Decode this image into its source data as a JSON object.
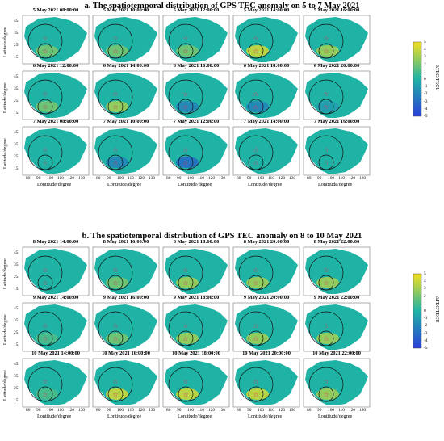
{
  "colors": {
    "background": "#1fb3a6",
    "positive": "#f5e020",
    "negative": "#2a3fd8",
    "marker": "#e0305a",
    "circle": "#111111"
  },
  "colorbar": {
    "label": "ΔTEC/TECU",
    "ticks": [
      "5",
      "4",
      "3",
      "2",
      "1",
      "0",
      "-1",
      "-2",
      "-3",
      "-4",
      "-5"
    ]
  },
  "axes": {
    "ylabel": "Latitude/degree",
    "xlabel": "Lontitude/degree",
    "yticks": [
      "45",
      "35",
      "25",
      "15"
    ],
    "xticks": [
      "80",
      "90",
      "100",
      "110",
      "120",
      "130"
    ]
  },
  "chart_data": [
    {
      "type": "heatmap",
      "title": "a. The spatiotemporal distribution of GPS TEC anomaly on 5 to 7 May 2021",
      "unit": "ΔTEC/TECU",
      "range": [
        -5,
        5
      ],
      "panels": [
        [
          "5 May 2021 08:00:00",
          "5 May 2021 10:00:00",
          "5 May 2021 12:00:00",
          "5 May 2021 14:00:00",
          "5 May 2021 16:00:00"
        ],
        [
          "6 May 2021 12:00:00",
          "6 May 2021 14:00:00",
          "6 May 2021 16:00:00",
          "6 May 2021 18:00:00",
          "6 May 2021 20:00:00"
        ],
        [
          "7 May 2021 08:00:00",
          "7 May 2021 10:00:00",
          "7 May 2021 12:00:00",
          "7 May 2021 14:00:00",
          "7 May 2021 16:00:00"
        ]
      ],
      "anomaly": [
        [
          2,
          2,
          2,
          4,
          3
        ],
        [
          2,
          3,
          -2,
          -2,
          -1
        ],
        [
          0,
          -2,
          -3,
          0,
          0
        ]
      ]
    },
    {
      "type": "heatmap",
      "title": "b. The spatiotemporal distribution of GPS TEC anomaly on 8 to 10 May 2021",
      "unit": "ΔTEC/TECU",
      "range": [
        -5,
        5
      ],
      "panels": [
        [
          "8 May 2021 14:00:00",
          "8 May 2021 16:00:00",
          "8 May 2021 18:00:00",
          "8 May 2021 20:00:00",
          "8 May 2021 22:00:00"
        ],
        [
          "9 May 2021 14:00:00",
          "9 May 2021 16:00:00",
          "9 May 2021 18:00:00",
          "9 May 2021 20:00:00",
          "9 May 2021 22:00:00"
        ],
        [
          "10 May 2021 14:00:00",
          "10 May 2021 16:00:00",
          "10 May 2021 18:00:00",
          "10 May 2021 20:00:00",
          "10 May 2021 22:00:00"
        ]
      ],
      "anomaly": [
        [
          0,
          2,
          3,
          3,
          3
        ],
        [
          1,
          2,
          3,
          3,
          3
        ],
        [
          1,
          4,
          4,
          4,
          3
        ]
      ]
    }
  ]
}
